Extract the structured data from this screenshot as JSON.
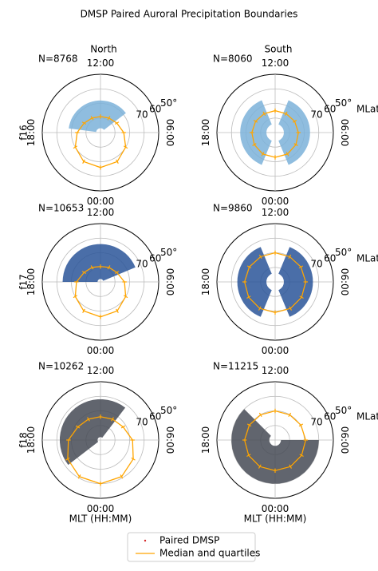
{
  "chart_data": {
    "type": "polar",
    "title": "DMSP Paired Auroral Precipitation Boundaries",
    "columns": [
      "North",
      "South"
    ],
    "rows": [
      {
        "name": "f16",
        "color": "#7bb2d9"
      },
      {
        "name": "f17",
        "color": "#2a5599"
      },
      {
        "name": "f18",
        "color": "#454a55"
      }
    ],
    "rlim": [
      50,
      90
    ],
    "rticks": [
      {
        "value": 50,
        "label": "50°"
      },
      60,
      70,
      {
        "value": 80,
        "label": null
      }
    ],
    "r_label": "MLat",
    "thetaticks": [
      {
        "value": 12,
        "label": "12:00"
      },
      {
        "value": 18,
        "label": "18:00"
      },
      {
        "value": 0,
        "label": "00:00"
      },
      {
        "value": 6,
        "label": "06:00"
      }
    ],
    "xlabel": "MLT (HH:MM)",
    "legend": [
      {
        "name": "Paired DMSP",
        "color": "#d62728"
      },
      {
        "name": "Median and quartiles",
        "color": "#ffa500"
      }
    ],
    "panels": [
      {
        "n_label": "N=8768",
        "mlt": [
          0,
          2,
          4,
          6,
          8,
          10,
          12,
          14,
          16,
          18,
          20,
          22
        ],
        "mlat": [
          66,
          67,
          70,
          74,
          77,
          78.5,
          79,
          78.5,
          77,
          74,
          70,
          67
        ]
      },
      {
        "n_label": "N=8060",
        "mlt": [
          0,
          2,
          4,
          6,
          8,
          10,
          12,
          14,
          16,
          18,
          20,
          22
        ],
        "mlat": [
          73,
          73,
          73.5,
          74,
          74.5,
          75,
          75,
          75,
          74.5,
          74,
          73.5,
          73
        ]
      },
      {
        "n_label": "N=10653",
        "mlt": [
          0,
          2,
          4,
          6,
          8,
          10,
          12,
          14,
          16,
          18,
          20,
          22
        ],
        "mlat": [
          66,
          67,
          70,
          73.5,
          77,
          78.5,
          79.5,
          78.5,
          77,
          73.5,
          70,
          67
        ]
      },
      {
        "n_label": "N=9860",
        "mlt": [
          0,
          2,
          4,
          6,
          8,
          10,
          12,
          14,
          16,
          18,
          20,
          22
        ],
        "mlat": [
          69,
          69,
          69,
          69,
          69.5,
          70,
          70,
          70,
          69.5,
          69,
          69,
          69
        ]
      },
      {
        "n_label": "N=10262",
        "mlt": [
          0,
          2,
          4,
          6,
          8,
          10,
          12,
          14,
          16,
          18,
          20,
          22
        ],
        "mlat": [
          60,
          61,
          64,
          68,
          72,
          73.5,
          74,
          73.5,
          72,
          68,
          64,
          61
        ]
      },
      {
        "n_label": "N=11215",
        "mlt": [
          0,
          2,
          4,
          6,
          8,
          10,
          12,
          14,
          16,
          18,
          20,
          22
        ],
        "mlat": [
          69,
          69,
          69,
          69,
          69.5,
          70,
          70,
          70,
          69.5,
          69,
          69,
          69
        ]
      }
    ]
  }
}
